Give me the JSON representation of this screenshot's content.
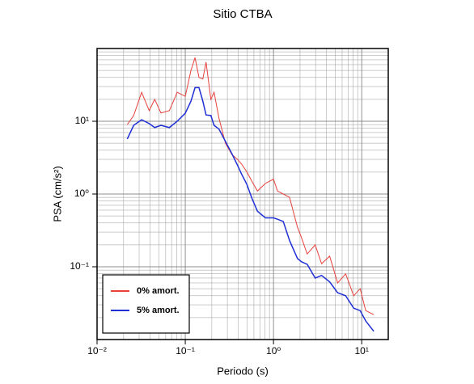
{
  "chart_data": {
    "type": "line",
    "title": "Sitio CTBA",
    "x_label": "Periodo (s)",
    "y_label": "PSA (cm/s²)",
    "x_scale": "log",
    "y_scale": "log",
    "grid": true,
    "legend_position": "lower left",
    "xlim": [
      0.01,
      20
    ],
    "ylim": [
      0.01,
      100
    ],
    "xticks": [
      {
        "value": 0.01,
        "label": "10⁻²"
      },
      {
        "value": 0.1,
        "label": "10⁻¹"
      },
      {
        "value": 1,
        "label": "10⁰"
      },
      {
        "value": 10,
        "label": "10¹"
      }
    ],
    "yticks": [
      {
        "value": 0.1,
        "label": "10⁻¹"
      },
      {
        "value": 1,
        "label": "10⁰"
      },
      {
        "value": 10,
        "label": "10¹"
      }
    ],
    "x": [
      0.022,
      0.026,
      0.032,
      0.039,
      0.045,
      0.053,
      0.066,
      0.081,
      0.1,
      0.116,
      0.129,
      0.143,
      0.158,
      0.172,
      0.195,
      0.212,
      0.241,
      0.285,
      0.337,
      0.39,
      0.433,
      0.5,
      0.568,
      0.658,
      0.81,
      1.0,
      1.11,
      1.29,
      1.52,
      1.87,
      2.08,
      2.41,
      2.97,
      3.51,
      4.33,
      5.34,
      6.58,
      8.11,
      9.6,
      11.1,
      13.7
    ],
    "series": [
      {
        "name": "0% amort.",
        "color": "#e8413c",
        "width": 1,
        "values": [
          9,
          12,
          25,
          14,
          20,
          13,
          14,
          25,
          22,
          50,
          75,
          40,
          38,
          65,
          20,
          25,
          11,
          5,
          3.5,
          3,
          2.6,
          2,
          1.5,
          1.1,
          1.4,
          1.6,
          1.1,
          1.0,
          0.9,
          0.35,
          0.25,
          0.15,
          0.2,
          0.11,
          0.14,
          0.06,
          0.08,
          0.04,
          0.05,
          0.025,
          0.022
        ]
      },
      {
        "name": "5% amort.",
        "color": "#1f2fd6",
        "width": 1.5,
        "values": [
          5.7,
          8.8,
          10.5,
          9.3,
          8.2,
          8.8,
          8.2,
          10,
          12.9,
          18.9,
          29,
          29,
          19,
          12.2,
          12,
          8.8,
          7.8,
          5.3,
          3.6,
          2.5,
          1.9,
          1.35,
          0.88,
          0.58,
          0.47,
          0.47,
          0.45,
          0.42,
          0.23,
          0.13,
          0.117,
          0.108,
          0.07,
          0.076,
          0.062,
          0.044,
          0.04,
          0.027,
          0.025,
          0.018,
          0.013
        ]
      }
    ]
  }
}
